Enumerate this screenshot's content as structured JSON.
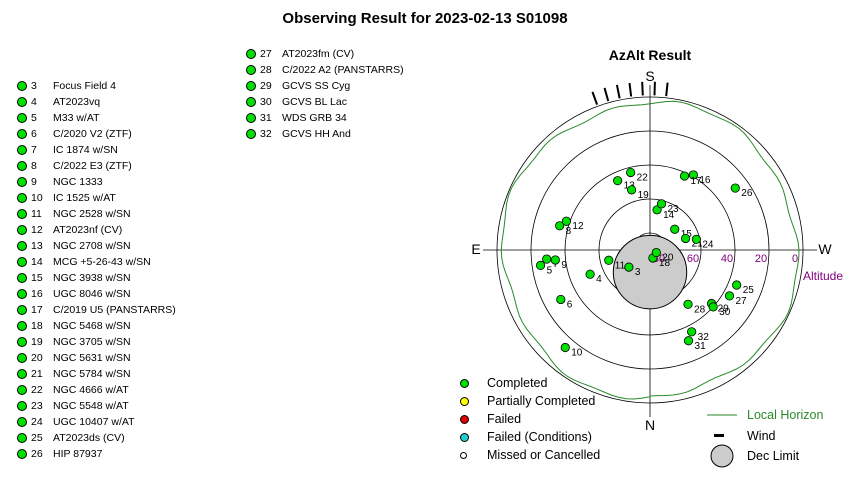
{
  "title": "Observing Result for 2023-02-13 S01098",
  "targets_left": [
    {
      "num": "3",
      "name": "Focus Field 4"
    },
    {
      "num": "4",
      "name": "AT2023vq"
    },
    {
      "num": "5",
      "name": "M33 w/AT"
    },
    {
      "num": "6",
      "name": "C/2020 V2 (ZTF)"
    },
    {
      "num": "7",
      "name": "IC 1874 w/SN"
    },
    {
      "num": "8",
      "name": "C/2022 E3 (ZTF)"
    },
    {
      "num": "9",
      "name": "NGC 1333"
    },
    {
      "num": "10",
      "name": "IC 1525 w/AT"
    },
    {
      "num": "11",
      "name": "NGC 2528 w/SN"
    },
    {
      "num": "12",
      "name": "AT2023nf (CV)"
    },
    {
      "num": "13",
      "name": "NGC 2708 w/SN"
    },
    {
      "num": "14",
      "name": "MCG +5-26-43 w/SN"
    },
    {
      "num": "15",
      "name": "NGC 3938 w/SN"
    },
    {
      "num": "16",
      "name": "UGC 8046 w/SN"
    },
    {
      "num": "17",
      "name": "C/2019 U5 (PANSTARRS)"
    },
    {
      "num": "18",
      "name": "NGC 5468 w/SN"
    },
    {
      "num": "19",
      "name": "NGC 3705 w/SN"
    },
    {
      "num": "20",
      "name": "NGC 5631 w/SN"
    },
    {
      "num": "21",
      "name": "NGC 5784 w/SN"
    },
    {
      "num": "22",
      "name": "NGC 4666 w/AT"
    },
    {
      "num": "23",
      "name": "NGC 5548 w/AT"
    },
    {
      "num": "24",
      "name": "UGC 10407 w/AT"
    },
    {
      "num": "25",
      "name": "AT2023ds (CV)"
    },
    {
      "num": "26",
      "name": "HIP 87937"
    }
  ],
  "targets_mid": [
    {
      "num": "27",
      "name": "AT2023fm (CV)"
    },
    {
      "num": "28",
      "name": "C/2022 A2 (PANSTARRS)"
    },
    {
      "num": "29",
      "name": "GCVS SS Cyg"
    },
    {
      "num": "30",
      "name": "GCVS BL Lac"
    },
    {
      "num": "31",
      "name": "WDS GRB 34"
    },
    {
      "num": "32",
      "name": "GCVS HH And"
    }
  ],
  "chart_data": {
    "type": "scatter",
    "projection": "polar az-alt",
    "title": "AzAlt Result",
    "directions": {
      "top": "S",
      "bottom": "N",
      "left": "E",
      "right": "W"
    },
    "altitude_ticks": [
      "80",
      "60",
      "40",
      "20",
      "0"
    ],
    "altitude_label": "Altitude",
    "rings_deg": [
      80,
      60,
      40,
      20,
      0
    ],
    "points": [
      {
        "id": "3",
        "az": 309,
        "alt": 74,
        "status": "completed"
      },
      {
        "id": "4",
        "az": 292,
        "alt": 52,
        "status": "completed"
      },
      {
        "id": "5",
        "az": 278,
        "alt": 25,
        "status": "completed"
      },
      {
        "id": "6",
        "az": 299,
        "alt": 30,
        "status": "completed"
      },
      {
        "id": "7",
        "az": 275,
        "alt": 29,
        "status": "completed"
      },
      {
        "id": "8",
        "az": 255,
        "alt": 35,
        "status": "completed"
      },
      {
        "id": "9",
        "az": 276,
        "alt": 34,
        "status": "completed"
      },
      {
        "id": "10",
        "az": 319,
        "alt": 14,
        "status": "completed"
      },
      {
        "id": "11",
        "az": 284,
        "alt": 65,
        "status": "completed"
      },
      {
        "id": "12",
        "az": 251,
        "alt": 38,
        "status": "completed"
      },
      {
        "id": "13",
        "az": 205,
        "alt": 45,
        "status": "completed"
      },
      {
        "id": "14",
        "az": 170,
        "alt": 66,
        "status": "completed"
      },
      {
        "id": "15",
        "az": 130,
        "alt": 71,
        "status": "completed"
      },
      {
        "id": "16",
        "az": 150,
        "alt": 39,
        "status": "completed"
      },
      {
        "id": "17",
        "az": 155,
        "alt": 42,
        "status": "completed"
      },
      {
        "id": "18",
        "az": 20,
        "alt": 85,
        "status": "completed"
      },
      {
        "id": "19",
        "az": 197,
        "alt": 53,
        "status": "completed"
      },
      {
        "id": "20",
        "az": 68,
        "alt": 86,
        "status": "completed"
      },
      {
        "id": "21",
        "az": 108,
        "alt": 68,
        "status": "completed"
      },
      {
        "id": "22",
        "az": 194,
        "alt": 43,
        "status": "completed"
      },
      {
        "id": "23",
        "az": 166,
        "alt": 62,
        "status": "completed"
      },
      {
        "id": "24",
        "az": 103,
        "alt": 62,
        "status": "completed"
      },
      {
        "id": "25",
        "az": 68,
        "alt": 35,
        "status": "completed"
      },
      {
        "id": "26",
        "az": 126,
        "alt": 28,
        "status": "completed"
      },
      {
        "id": "27",
        "az": 60,
        "alt": 36,
        "status": "completed"
      },
      {
        "id": "28",
        "az": 35,
        "alt": 51,
        "status": "completed"
      },
      {
        "id": "29",
        "az": 49,
        "alt": 42,
        "status": "completed"
      },
      {
        "id": "30",
        "az": 48,
        "alt": 40,
        "status": "completed"
      },
      {
        "id": "31",
        "az": 23,
        "alt": 32,
        "status": "completed"
      },
      {
        "id": "32",
        "az": 27,
        "alt": 36,
        "status": "completed"
      }
    ],
    "dec_limit": {
      "center_az": 0,
      "center_alt": 77,
      "radius_deg": 18
    },
    "wind_az_range": [
      174,
      200
    ],
    "local_horizon_color": "#2a8a2a",
    "grid": true
  },
  "legend": {
    "completed": "Completed",
    "partial": "Partially Completed",
    "failed": "Failed",
    "failed_conditions": "Failed (Conditions)",
    "missed": "Missed or Cancelled",
    "local_horizon": "Local Horizon",
    "wind": "Wind",
    "dec_limit": "Dec Limit"
  },
  "colors": {
    "completed": "#00e000",
    "partial": "#ffff00",
    "failed": "#e00000",
    "failed_conditions": "#20d0d0",
    "missed": "#ffffff",
    "altitude_text": "#800080",
    "dec_limit_fill": "#cccccc"
  }
}
